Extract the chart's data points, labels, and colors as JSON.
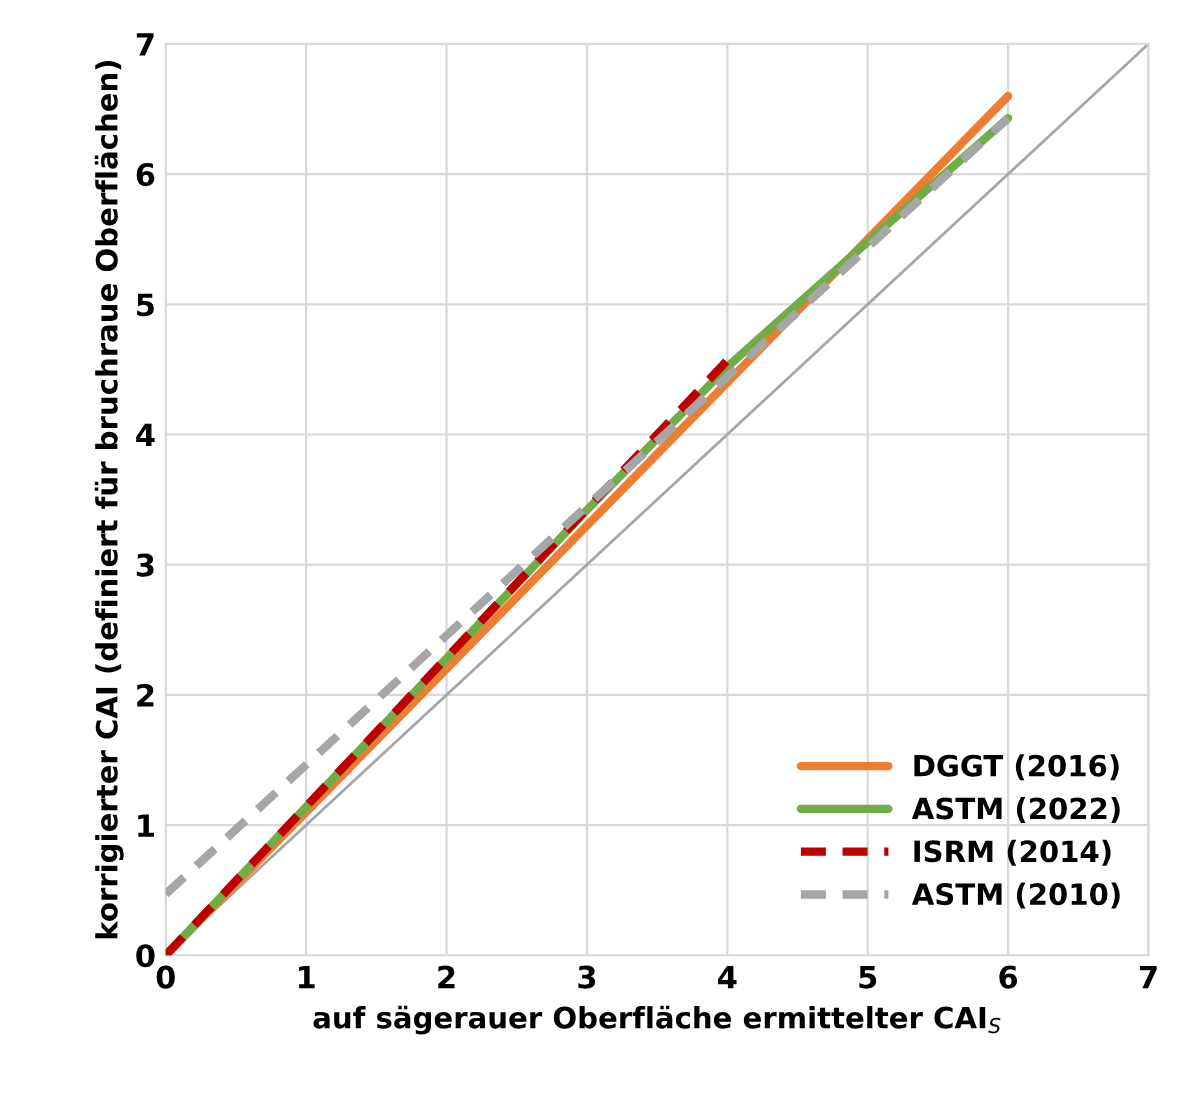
{
  "chart_data": {
    "type": "line",
    "xlabel": "auf sägerauer Oberfläche ermittelter CAI$_{S}$",
    "ylabel": "korrigierter CAI (definiert für bruchraue Oberflächen)",
    "xlim": [
      0,
      7
    ],
    "ylim": [
      0,
      7
    ],
    "xticks": [
      0,
      1,
      2,
      3,
      4,
      5,
      6,
      7
    ],
    "yticks": [
      0,
      1,
      2,
      3,
      4,
      5,
      6,
      7
    ],
    "grid": true,
    "legend": "bottom right",
    "marker": "none",
    "series": [
      {
        "color": "#a6a6a6",
        "x": [
          0,
          7
        ],
        "values": [
          0,
          7
        ],
        "line_style": "solid"
      },
      {
        "name": "DGGT (2016)",
        "color": "#ed7d31",
        "x": [
          0,
          6
        ],
        "values": [
          0,
          6.6
        ],
        "line_style": "solid"
      },
      {
        "name": "ASTM (2022)",
        "color": "#70ad47",
        "x": [
          0,
          1,
          2,
          3,
          4,
          5,
          6
        ],
        "values": [
          0,
          1.14,
          2.28,
          3.42,
          4.52,
          5.48,
          6.43
        ],
        "line_style": "solid"
      },
      {
        "name": "ISRM (2014)",
        "color": "#c00000",
        "x": [
          0,
          4
        ],
        "values": [
          0,
          4.57
        ],
        "line_style": "dashed"
      },
      {
        "name": "ASTM (2010)",
        "color": "#a6a6a6",
        "x": [
          0,
          6
        ],
        "values": [
          0.47,
          6.43
        ],
        "line_style": "dashed"
      }
    ]
  }
}
